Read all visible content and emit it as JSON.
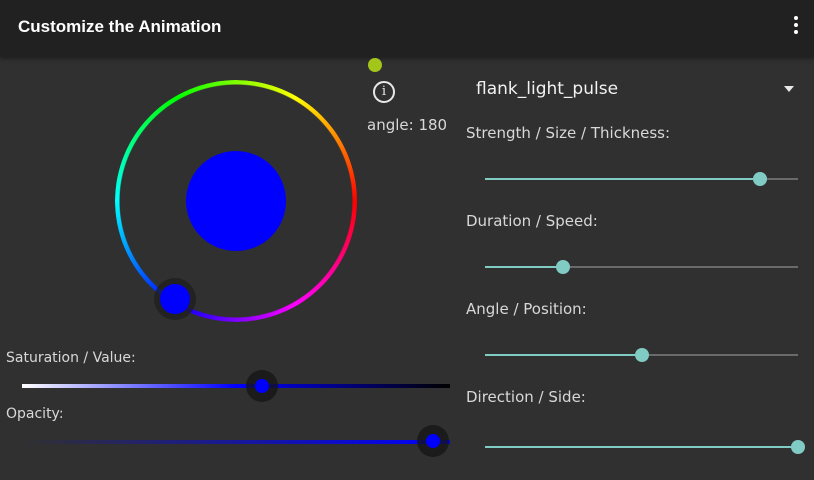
{
  "appbar": {
    "title": "Customize the Animation",
    "menu_icon": "more-vert-icon"
  },
  "color_picker": {
    "selected_color": "#0000ff",
    "indicator_color": "#a4c61a",
    "info_icon": "info-icon",
    "info_glyph": "i",
    "angle_label": "angle: 180",
    "saturation_label": "Saturation / Value:",
    "saturation_value_fraction": 0.56,
    "opacity_label": "Opacity:",
    "opacity_fraction": 0.96
  },
  "animation": {
    "selected": "flank_light_pulse",
    "dropdown_icon": "arrow-drop-down-icon"
  },
  "sliders": [
    {
      "label": "Strength / Size / Thickness:",
      "fraction": 0.88
    },
    {
      "label": "Duration / Speed:",
      "fraction": 0.25
    },
    {
      "label": "Angle / Position:",
      "fraction": 0.5
    },
    {
      "label": "Direction / Side:",
      "fraction": 1.0
    }
  ],
  "colors": {
    "accent": "#80cbc4",
    "track": "#6a6a6a",
    "background": "#303030",
    "appbar": "#212121"
  }
}
